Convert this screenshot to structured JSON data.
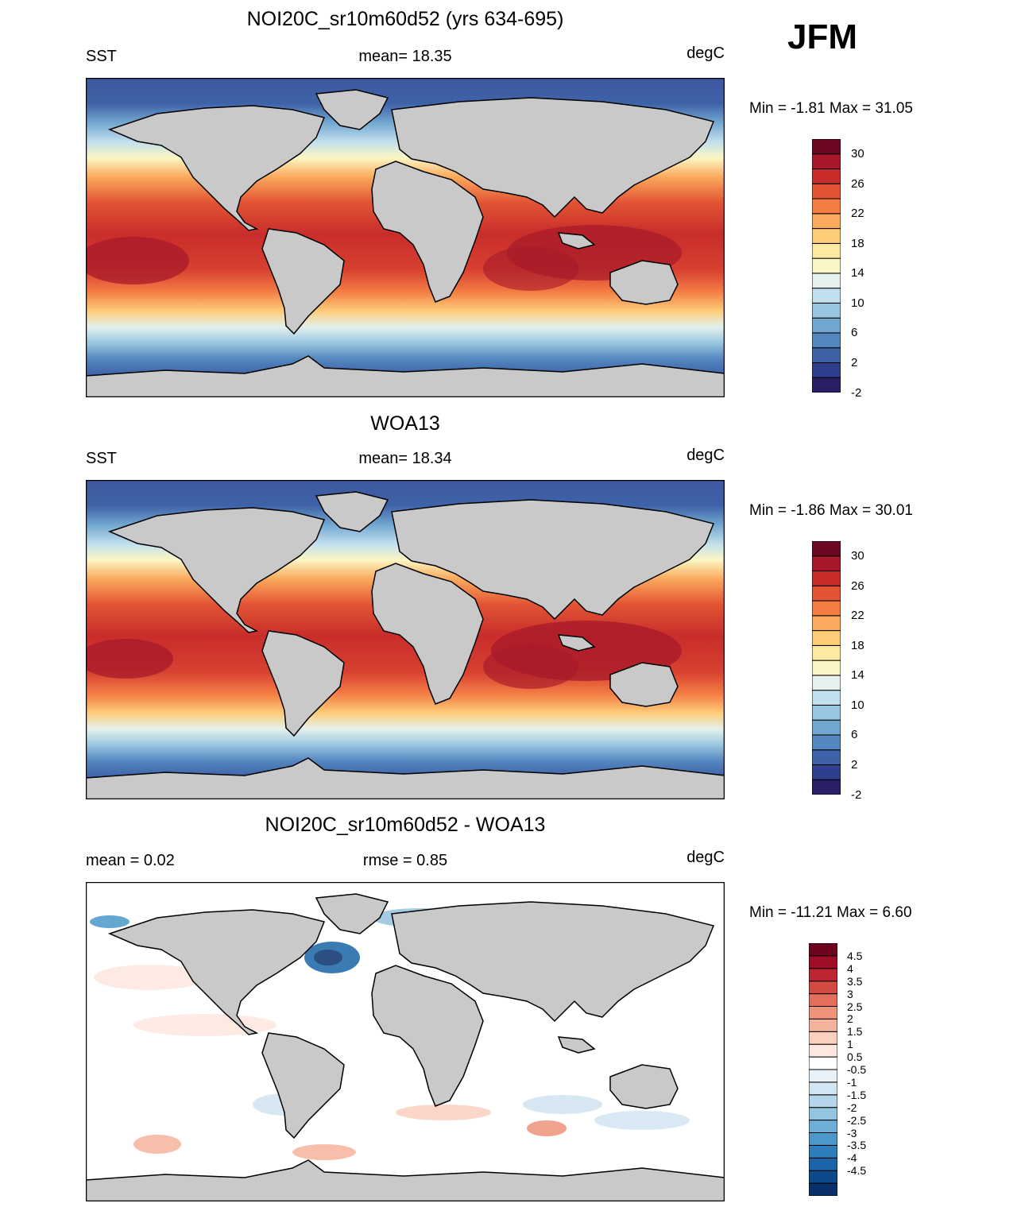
{
  "season": "JFM",
  "colors": {
    "land": "#c9c9c9",
    "coast": "#000000",
    "frame": "#000000"
  },
  "panels": [
    {
      "id": "model",
      "title": "NOI20C_sr10m60d52 (yrs 634-695)",
      "left_label": "SST",
      "center_label": "mean=  18.35",
      "right_label": "degC",
      "minmax": "Min =  -1.81 Max =  31.05",
      "colorbar": {
        "colors": [
          "#2b1e64",
          "#2f3f8e",
          "#3e62a8",
          "#5487bf",
          "#72a7d0",
          "#98c5e0",
          "#c1dfee",
          "#e4f1ee",
          "#fbf7c4",
          "#fde9a0",
          "#fdcd79",
          "#fba95d",
          "#f47d44",
          "#e25434",
          "#c82d2b",
          "#a7192a",
          "#6d0823"
        ],
        "labels": [
          "30",
          "26",
          "22",
          "18",
          "14",
          "10",
          "6",
          "2",
          "-2"
        ]
      }
    },
    {
      "id": "obs",
      "title": "WOA13",
      "left_label": "SST",
      "center_label": "mean=  18.34",
      "right_label": "degC",
      "minmax": "Min =  -1.86 Max =  30.01",
      "colorbar": {
        "colors": [
          "#2b1e64",
          "#2f3f8e",
          "#3e62a8",
          "#5487bf",
          "#72a7d0",
          "#98c5e0",
          "#c1dfee",
          "#e4f1ee",
          "#fbf7c4",
          "#fde9a0",
          "#fdcd79",
          "#fba95d",
          "#f47d44",
          "#e25434",
          "#c82d2b",
          "#a7192a",
          "#6d0823"
        ],
        "labels": [
          "30",
          "26",
          "22",
          "18",
          "14",
          "10",
          "6",
          "2",
          "-2"
        ]
      }
    },
    {
      "id": "diff",
      "title": "NOI20C_sr10m60d52 - WOA13",
      "left_label": "mean =   0.02",
      "center_label": "rmse =   0.85",
      "right_label": "degC",
      "minmax": "Min = -11.21 Max =    6.60",
      "colorbar": {
        "colors": [
          "#08306b",
          "#0d4a8c",
          "#1a64a8",
          "#2f7ebc",
          "#4b98ca",
          "#6daed6",
          "#93c4e0",
          "#b5d6ea",
          "#d2e5f2",
          "#eaf2f9",
          "#ffffff",
          "#fde8df",
          "#fbd0bf",
          "#f6b39c",
          "#ef927a",
          "#e36e5b",
          "#d34a43",
          "#bd2630",
          "#9f0e28",
          "#6c0420"
        ],
        "labels": [
          "4.5",
          "4",
          "3.5",
          "3",
          "2.5",
          "2",
          "1.5",
          "1",
          "0.5",
          "-0.5",
          "-1",
          "-1.5",
          "-2",
          "-2.5",
          "-3",
          "-3.5",
          "-4",
          "-4.5"
        ]
      }
    }
  ]
}
